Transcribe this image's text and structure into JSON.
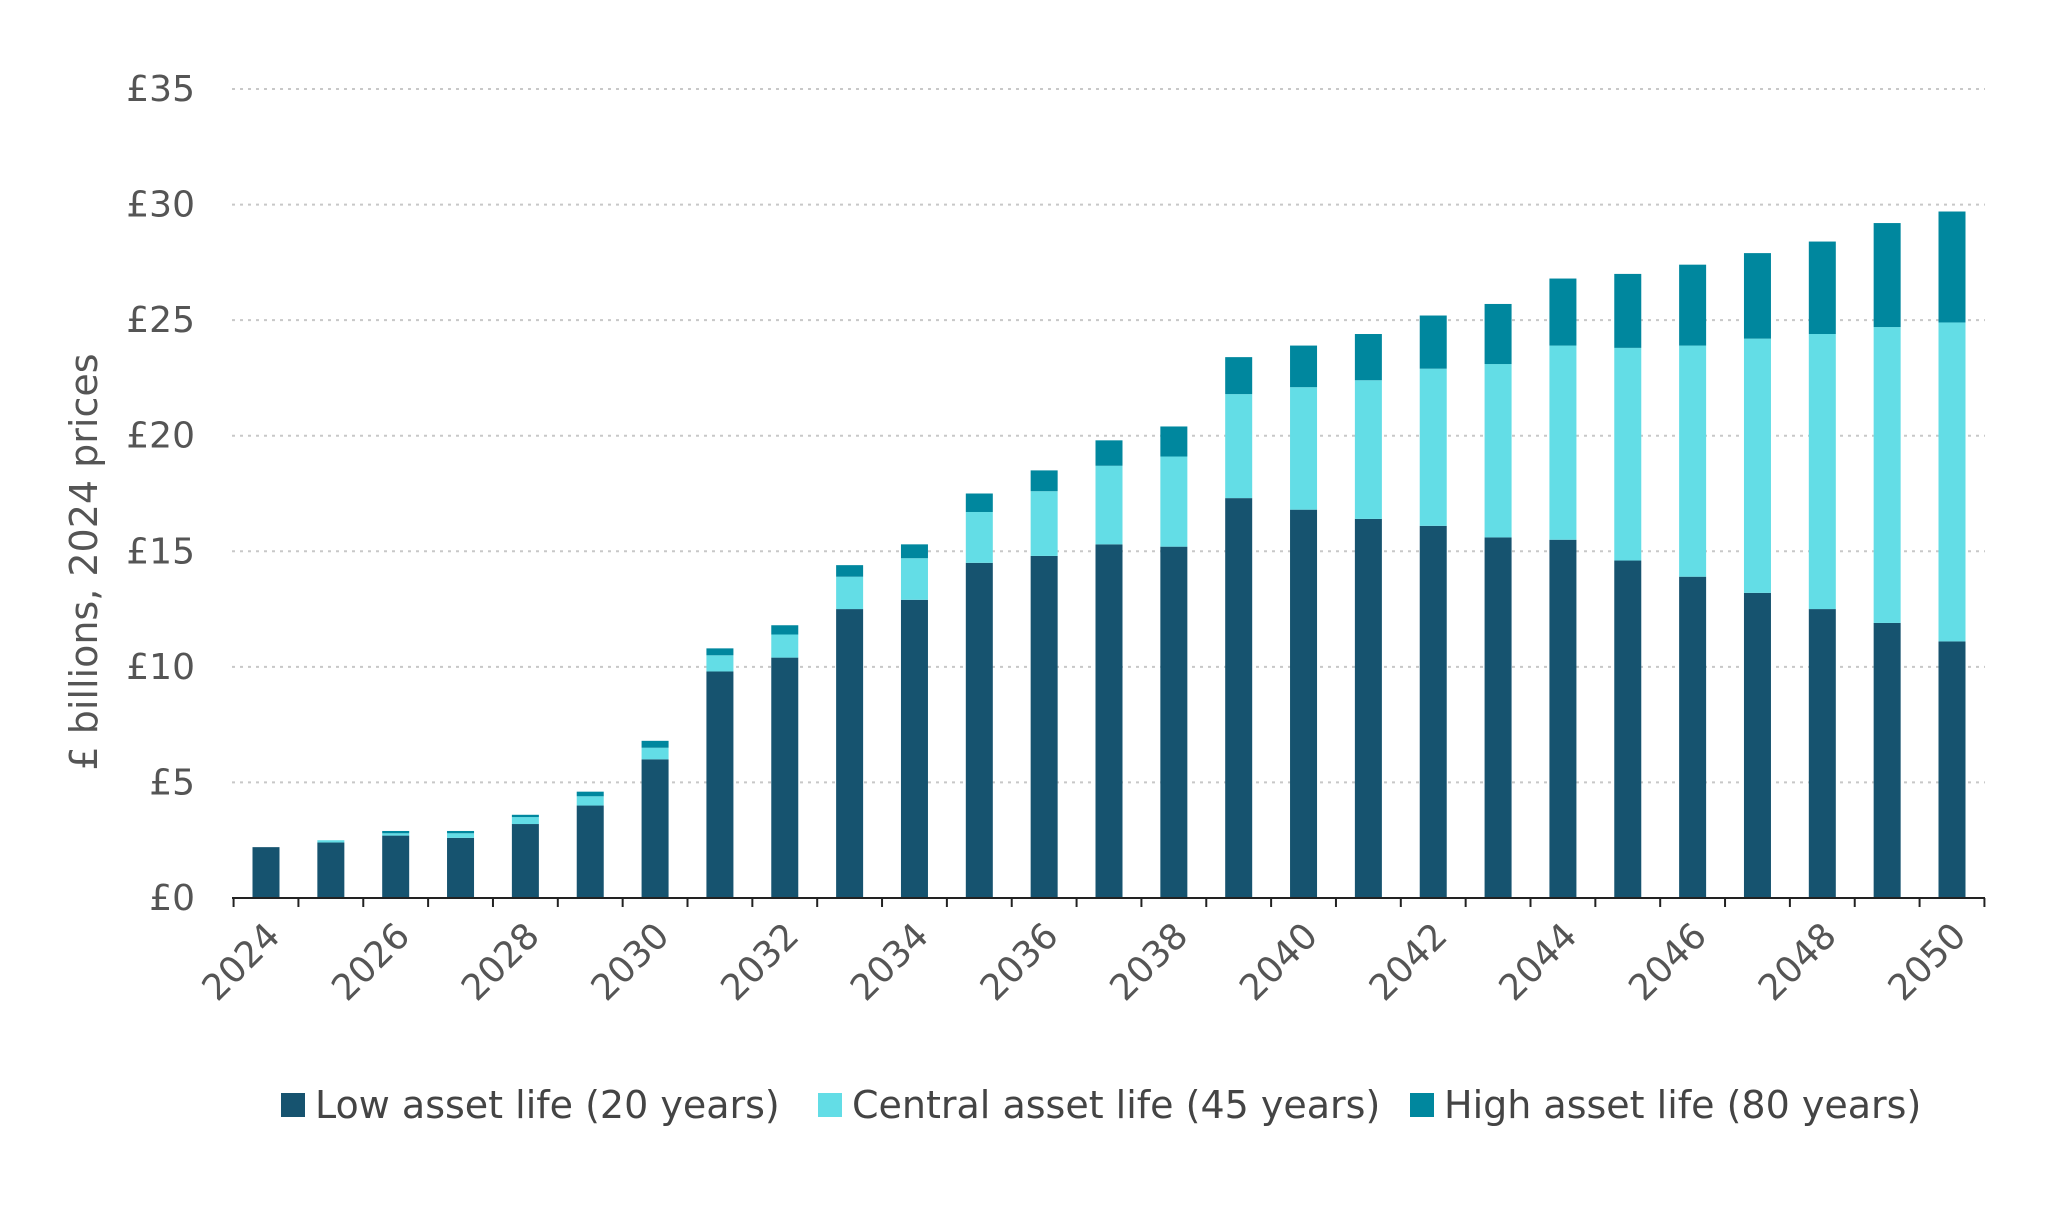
{
  "chart_data": {
    "type": "bar",
    "stacked": true,
    "title": "",
    "xlabel": "",
    "ylabel": "£ billions, 2024 prices",
    "ylim": [
      0,
      35
    ],
    "y_ticks": [
      "£0",
      "£5",
      "£10",
      "£15",
      "£20",
      "£25",
      "£30",
      "£35"
    ],
    "y_tick_values": [
      0,
      5,
      10,
      15,
      20,
      25,
      30,
      35
    ],
    "grid": true,
    "legend_position": "bottom",
    "categories": [
      "2024",
      "2025",
      "2026",
      "2027",
      "2028",
      "2029",
      "2030",
      "2031",
      "2032",
      "2033",
      "2034",
      "2035",
      "2036",
      "2037",
      "2038",
      "2039",
      "2040",
      "2041",
      "2042",
      "2043",
      "2044",
      "2045",
      "2046",
      "2047",
      "2048",
      "2049",
      "2050"
    ],
    "x_tick_labels": [
      "2024",
      "2026",
      "2028",
      "2030",
      "2032",
      "2034",
      "2036",
      "2038",
      "2040",
      "2042",
      "2044",
      "2046",
      "2048",
      "2050"
    ],
    "series": [
      {
        "name": "Low asset life (20 years)",
        "color": "#16536f",
        "values": [
          2.2,
          2.4,
          2.7,
          2.6,
          3.2,
          4.0,
          6.0,
          9.8,
          10.4,
          12.5,
          12.9,
          14.5,
          14.8,
          15.3,
          15.2,
          17.3,
          16.8,
          16.4,
          16.1,
          15.6,
          15.5,
          14.6,
          13.9,
          13.2,
          12.5,
          11.9,
          11.1
        ]
      },
      {
        "name": "Central asset life (45 years)",
        "color": "#63dde6",
        "values": [
          0.0,
          0.1,
          0.1,
          0.2,
          0.3,
          0.4,
          0.5,
          0.7,
          1.0,
          1.4,
          1.8,
          2.2,
          2.8,
          3.4,
          3.9,
          4.5,
          5.3,
          6.0,
          6.8,
          7.5,
          8.4,
          9.2,
          10.0,
          11.0,
          11.9,
          12.8,
          13.8
        ]
      },
      {
        "name": "High asset life (80 years)",
        "color": "#00879e",
        "values": [
          0.0,
          0.0,
          0.1,
          0.1,
          0.1,
          0.2,
          0.3,
          0.3,
          0.4,
          0.5,
          0.6,
          0.8,
          0.9,
          1.1,
          1.3,
          1.6,
          1.8,
          2.0,
          2.3,
          2.6,
          2.9,
          3.2,
          3.5,
          3.7,
          4.0,
          4.5,
          4.8
        ]
      }
    ]
  }
}
